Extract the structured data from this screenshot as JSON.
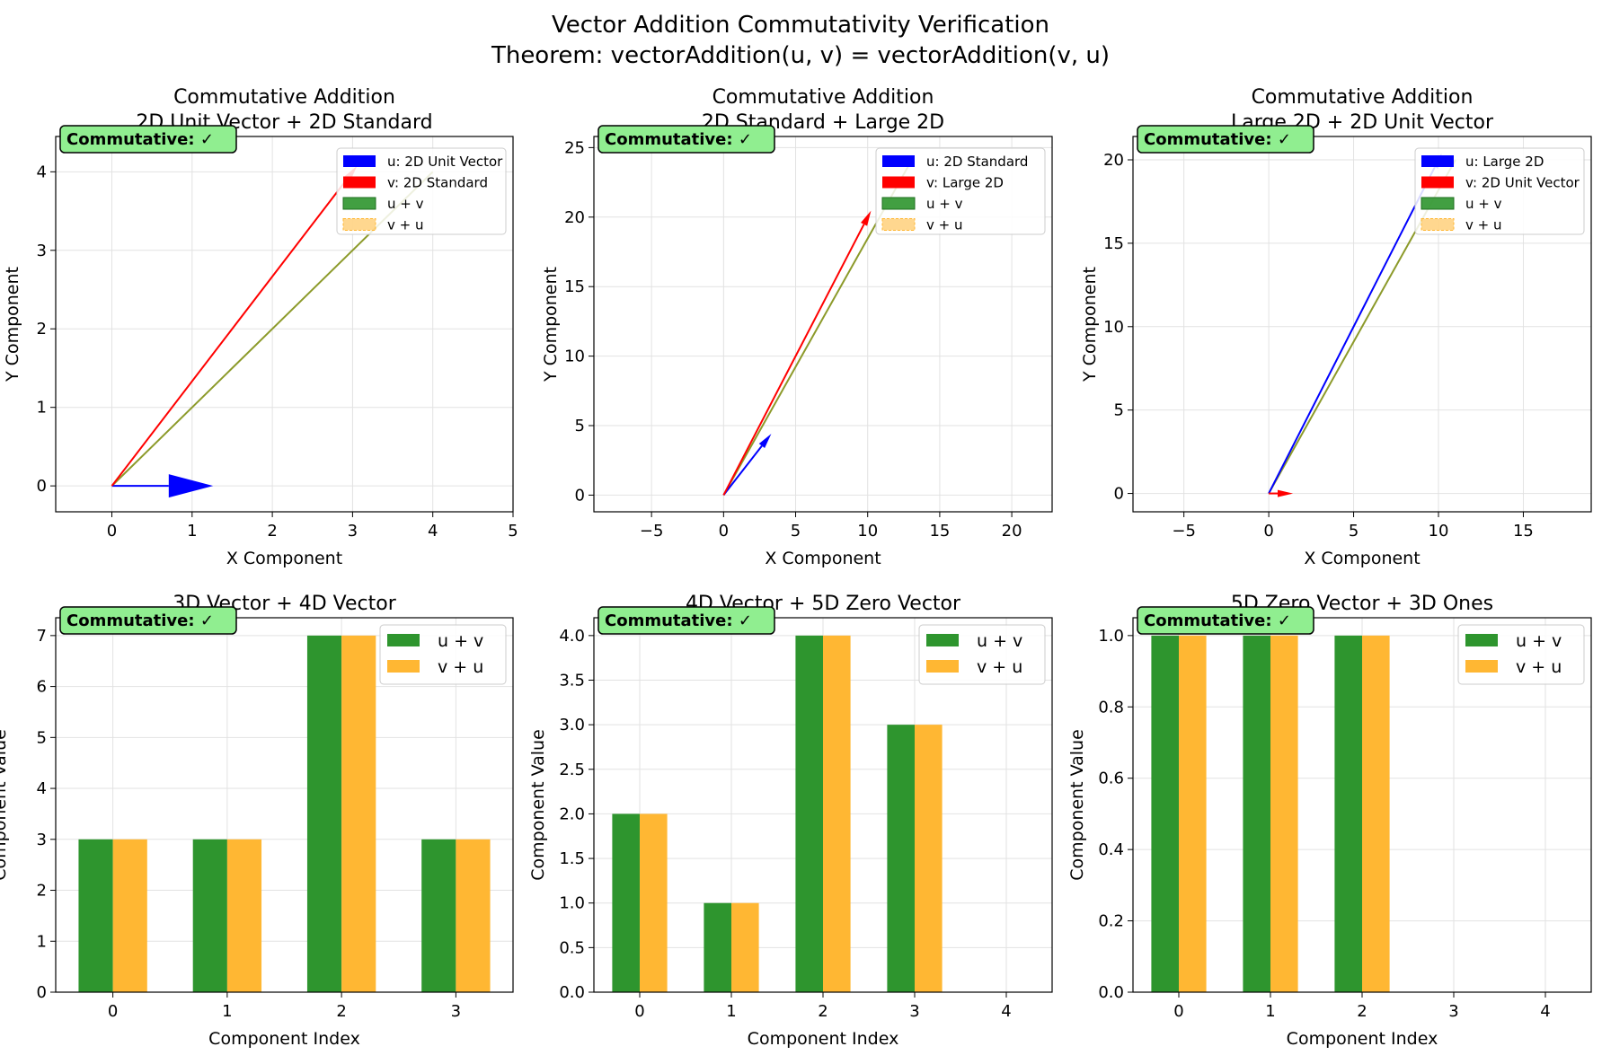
{
  "figure": {
    "title_line1": "Vector Addition Commutativity Verification",
    "title_line2": "Theorem: vectorAddition(u, v) = vectorAddition(v, u)"
  },
  "colors": {
    "u": "#0000ff",
    "v": "#ff0000",
    "sum_uv": "#2e952e",
    "sum_vu": "#ffb733",
    "overlap": "#8c9a2a",
    "badge_fill": "#90ee90",
    "grid": "#e2e2e2"
  },
  "chart_data": [
    {
      "type": "vector",
      "title_line1": "Commutative Addition",
      "title_line2": "2D Unit Vector + 2D Standard",
      "xlabel": "X Component",
      "ylabel": "Y Component",
      "xlim": [
        -0.7,
        5.0
      ],
      "ylim": [
        -0.33,
        4.45
      ],
      "xticks": [
        0,
        1,
        2,
        3,
        4,
        5
      ],
      "yticks": [
        0,
        1,
        2,
        3,
        4
      ],
      "u": [
        1,
        0
      ],
      "v": [
        3,
        4
      ],
      "u_plus_v": [
        4,
        4
      ],
      "v_plus_u": [
        4,
        4
      ],
      "badge": "Commutative: ✓",
      "legend": [
        "u: 2D Unit Vector",
        "v: 2D Standard",
        "u + v",
        "v + u"
      ],
      "legend_position": "upper right"
    },
    {
      "type": "vector",
      "title_line1": "Commutative Addition",
      "title_line2": "2D Standard + Large 2D",
      "xlabel": "X Component",
      "ylabel": "Y Component",
      "xlim": [
        -9.0,
        22.8
      ],
      "ylim": [
        -1.2,
        25.8
      ],
      "xticks": [
        -5,
        0,
        5,
        10,
        15,
        20
      ],
      "yticks": [
        0,
        5,
        10,
        15,
        20,
        25
      ],
      "u": [
        3,
        4
      ],
      "v": [
        10,
        20
      ],
      "u_plus_v": [
        13,
        24
      ],
      "v_plus_u": [
        13,
        24
      ],
      "badge": "Commutative: ✓",
      "legend": [
        "u: 2D Standard",
        "v: Large 2D",
        "u + v",
        "v + u"
      ],
      "legend_position": "upper right"
    },
    {
      "type": "vector",
      "title_line1": "Commutative Addition",
      "title_line2": "Large 2D + 2D Unit Vector",
      "xlabel": "X Component",
      "ylabel": "Y Component",
      "xlim": [
        -8.0,
        19.0
      ],
      "ylim": [
        -1.1,
        21.4
      ],
      "xticks": [
        -5,
        0,
        5,
        10,
        15
      ],
      "yticks": [
        0,
        5,
        10,
        15,
        20
      ],
      "u": [
        10,
        20
      ],
      "v": [
        1,
        0
      ],
      "u_plus_v": [
        11,
        20
      ],
      "v_plus_u": [
        11,
        20
      ],
      "badge": "Commutative: ✓",
      "legend": [
        "u: Large 2D",
        "v: 2D Unit Vector",
        "u + v",
        "v + u"
      ],
      "legend_position": "upper right"
    },
    {
      "type": "bar",
      "title": "3D Vector + 4D Vector",
      "xlabel": "Component Index",
      "ylabel": "Component Value",
      "categories": [
        0,
        1,
        2,
        3
      ],
      "xlim": [
        -0.5,
        3.5
      ],
      "ylim": [
        0,
        7.35
      ],
      "yticks": [
        0,
        1,
        2,
        3,
        4,
        5,
        6,
        7
      ],
      "series": [
        {
          "name": "u + v",
          "values": [
            3,
            3,
            7,
            3
          ]
        },
        {
          "name": "v + u",
          "values": [
            3,
            3,
            7,
            3
          ]
        }
      ],
      "badge": "Commutative: ✓",
      "legend_position": "upper right"
    },
    {
      "type": "bar",
      "title": "4D Vector + 5D Zero Vector",
      "xlabel": "Component Index",
      "ylabel": "Component Value",
      "categories": [
        0,
        1,
        2,
        3,
        4
      ],
      "xlim": [
        -0.5,
        4.5
      ],
      "ylim": [
        0,
        4.2
      ],
      "yticks": [
        0.0,
        0.5,
        1.0,
        1.5,
        2.0,
        2.5,
        3.0,
        3.5,
        4.0
      ],
      "series": [
        {
          "name": "u + v",
          "values": [
            2,
            1,
            4,
            3,
            0
          ]
        },
        {
          "name": "v + u",
          "values": [
            2,
            1,
            4,
            3,
            0
          ]
        }
      ],
      "badge": "Commutative: ✓",
      "legend_position": "upper right"
    },
    {
      "type": "bar",
      "title": "5D Zero Vector + 3D Ones",
      "xlabel": "Component Index",
      "ylabel": "Component Value",
      "categories": [
        0,
        1,
        2,
        3,
        4
      ],
      "xlim": [
        -0.5,
        4.5
      ],
      "ylim": [
        0,
        1.05
      ],
      "yticks": [
        0.0,
        0.2,
        0.4,
        0.6,
        0.8,
        1.0
      ],
      "series": [
        {
          "name": "u + v",
          "values": [
            1,
            1,
            1,
            0,
            0
          ]
        },
        {
          "name": "v + u",
          "values": [
            1,
            1,
            1,
            0,
            0
          ]
        }
      ],
      "badge": "Commutative: ✓",
      "legend_position": "upper right"
    }
  ]
}
